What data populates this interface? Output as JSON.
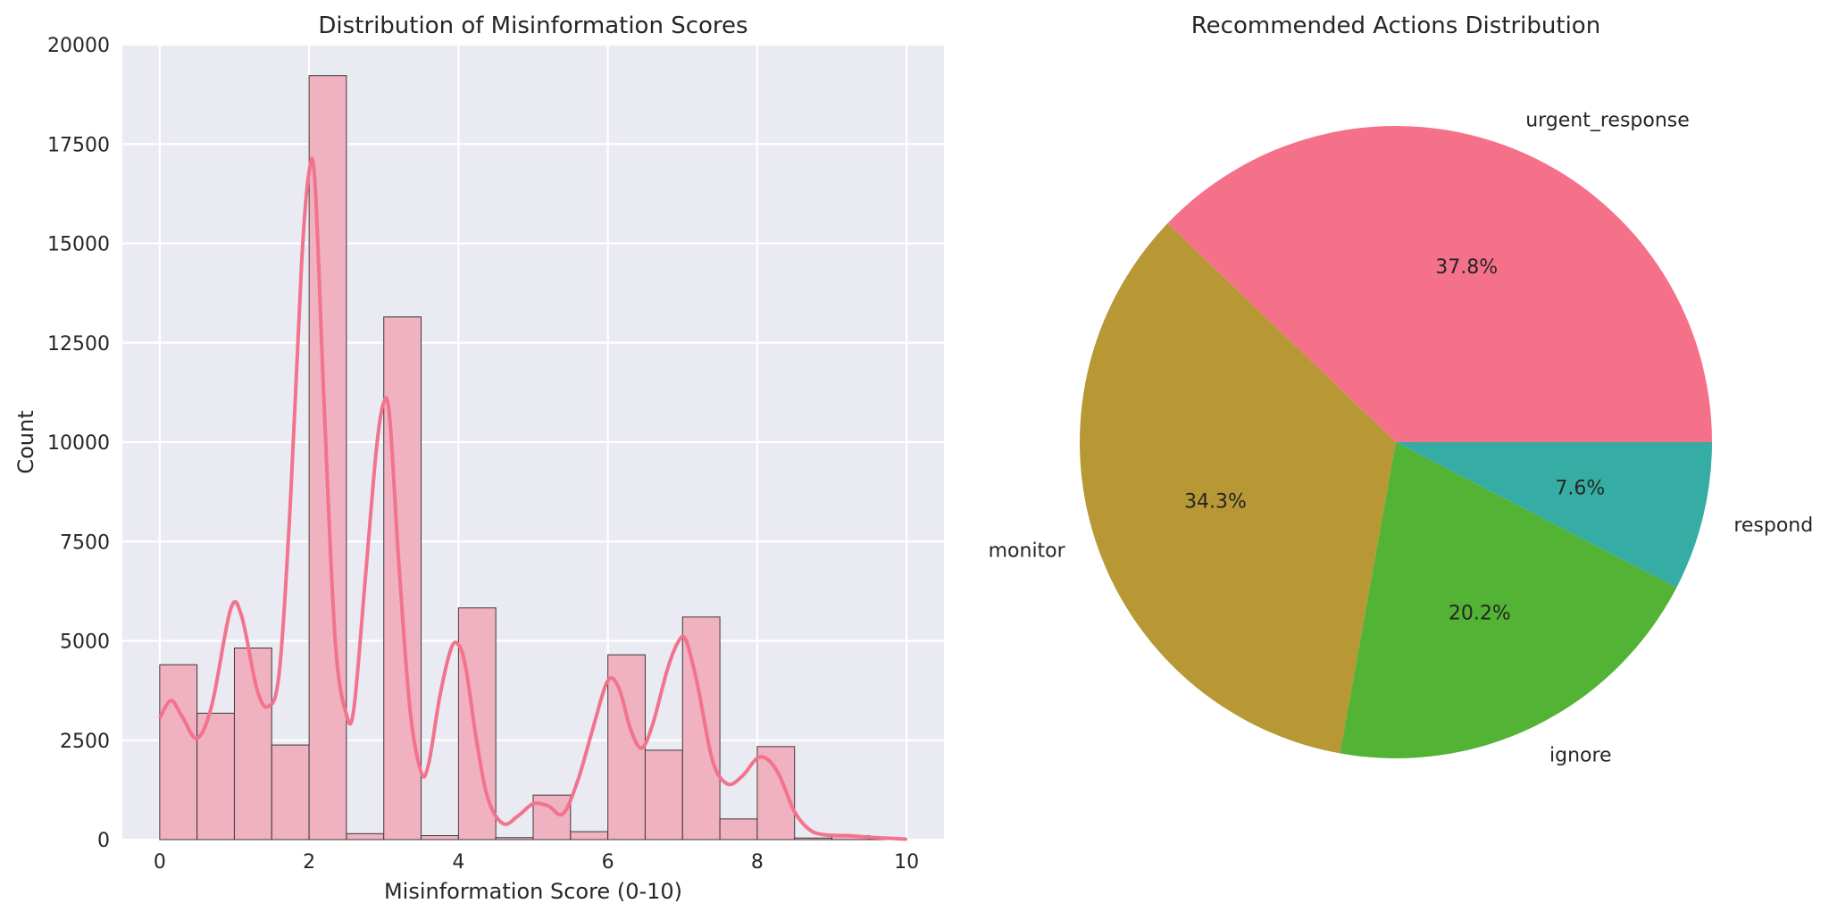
{
  "chart_data": [
    {
      "type": "bar",
      "title": "Distribution of Misinformation Scores",
      "xlabel": "Misinformation Score (0-10)",
      "ylabel": "Count",
      "xlim": [
        -0.5,
        10.5
      ],
      "ylim": [
        0,
        20000
      ],
      "x_ticks": [
        0,
        2,
        4,
        6,
        8,
        10
      ],
      "y_ticks": [
        0,
        2500,
        5000,
        7500,
        10000,
        12500,
        15000,
        17500,
        20000
      ],
      "grid": true,
      "bin_width": 0.5,
      "bins": [
        {
          "x0": 0.0,
          "x1": 0.5,
          "value": 4400
        },
        {
          "x0": 0.5,
          "x1": 1.0,
          "value": 3180
        },
        {
          "x0": 1.0,
          "x1": 1.5,
          "value": 4820
        },
        {
          "x0": 1.5,
          "x1": 2.0,
          "value": 2380
        },
        {
          "x0": 2.0,
          "x1": 2.5,
          "value": 19220
        },
        {
          "x0": 2.5,
          "x1": 3.0,
          "value": 150
        },
        {
          "x0": 3.0,
          "x1": 3.5,
          "value": 13150
        },
        {
          "x0": 3.5,
          "x1": 4.0,
          "value": 100
        },
        {
          "x0": 4.0,
          "x1": 4.5,
          "value": 5830
        },
        {
          "x0": 4.5,
          "x1": 5.0,
          "value": 50
        },
        {
          "x0": 5.0,
          "x1": 5.5,
          "value": 1120
        },
        {
          "x0": 5.5,
          "x1": 6.0,
          "value": 200
        },
        {
          "x0": 6.0,
          "x1": 6.5,
          "value": 4650
        },
        {
          "x0": 6.5,
          "x1": 7.0,
          "value": 2250
        },
        {
          "x0": 7.0,
          "x1": 7.5,
          "value": 5600
        },
        {
          "x0": 7.5,
          "x1": 8.0,
          "value": 520
        },
        {
          "x0": 8.0,
          "x1": 8.5,
          "value": 2340
        },
        {
          "x0": 8.5,
          "x1": 9.0,
          "value": 40
        },
        {
          "x0": 9.0,
          "x1": 9.5,
          "value": 100
        },
        {
          "x0": 9.5,
          "x1": 10.0,
          "value": 10
        }
      ],
      "kde": {
        "x": [
          0,
          0.15,
          0.3,
          0.5,
          0.7,
          0.95,
          1.1,
          1.3,
          1.45,
          1.6,
          1.75,
          1.9,
          2.0,
          2.08,
          2.2,
          2.35,
          2.5,
          2.6,
          2.75,
          2.9,
          3.0,
          3.08,
          3.2,
          3.35,
          3.5,
          3.6,
          3.75,
          3.9,
          4.0,
          4.1,
          4.25,
          4.4,
          4.6,
          4.8,
          5.0,
          5.2,
          5.4,
          5.6,
          5.8,
          6.0,
          6.15,
          6.3,
          6.45,
          6.6,
          6.8,
          6.95,
          7.05,
          7.2,
          7.4,
          7.6,
          7.8,
          8.0,
          8.15,
          8.3,
          8.5,
          8.7,
          8.9,
          9.2,
          9.5,
          9.8,
          10.0
        ],
        "y": [
          3050,
          3500,
          3100,
          2550,
          3400,
          5800,
          5600,
          3800,
          3350,
          4200,
          8500,
          14500,
          16800,
          16500,
          11000,
          5000,
          3150,
          3300,
          6500,
          9800,
          11000,
          10600,
          7000,
          3300,
          1700,
          1900,
          3600,
          4800,
          4900,
          4300,
          2400,
          1000,
          400,
          600,
          900,
          850,
          650,
          1500,
          2800,
          4000,
          3800,
          2800,
          2300,
          2900,
          4300,
          5000,
          5000,
          3900,
          2000,
          1400,
          1600,
          2050,
          2000,
          1600,
          700,
          250,
          120,
          100,
          60,
          30,
          10
        ]
      },
      "colors": {
        "bar_fill": "#f0b1c0",
        "bar_edge": "#3a3a3a",
        "kde_line": "#f2738d",
        "plot_bg": "#eaeaf2",
        "grid": "#ffffff"
      }
    },
    {
      "type": "pie",
      "title": "Recommended Actions Distribution",
      "slices": [
        {
          "label": "urgent_response",
          "value": 37.8,
          "pct_label": "37.8%",
          "color": "#f5718a"
        },
        {
          "label": "monitor",
          "value": 34.3,
          "pct_label": "34.3%",
          "color": "#b89834"
        },
        {
          "label": "ignore",
          "value": 20.2,
          "pct_label": "20.2%",
          "color": "#52b334"
        },
        {
          "label": "respond",
          "value": 7.6,
          "pct_label": "7.6%",
          "color": "#36ada4"
        }
      ],
      "start_angle_deg": 0,
      "direction": "counterclockwise"
    }
  ]
}
